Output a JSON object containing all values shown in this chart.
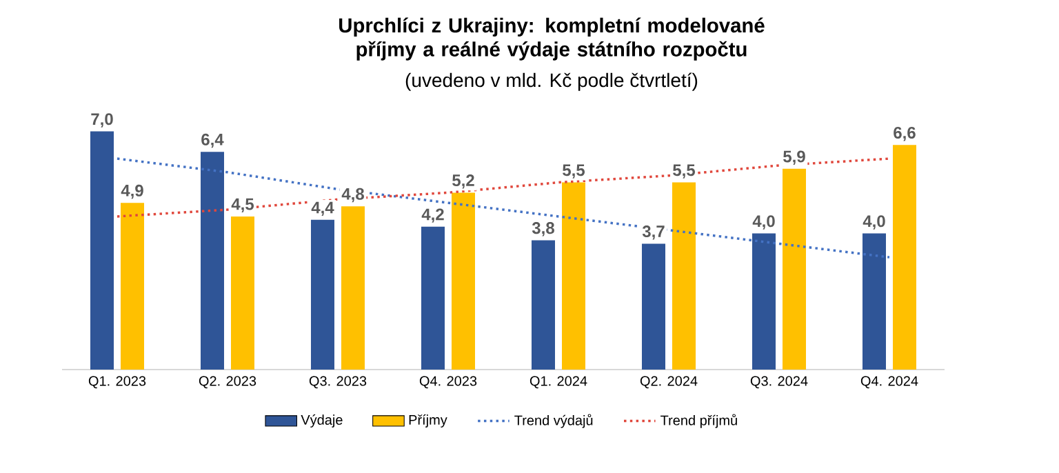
{
  "chart_data": {
    "type": "bar",
    "title": "Uprchlíci z Ukrajiny: kompletní modelované příjmy a reálné výdaje státního rozpočtu",
    "subtitle": "(uvedeno v mld. Kč podle čtvrtletí)",
    "categories": [
      "Q1. 2023",
      "Q2. 2023",
      "Q3. 2023",
      "Q4. 2023",
      "Q1. 2024",
      "Q2. 2024",
      "Q3. 2024",
      "Q4. 2024"
    ],
    "series": [
      {
        "name": "Výdaje",
        "color": "#2f5597",
        "values": [
          7.0,
          6.4,
          4.4,
          4.2,
          3.8,
          3.7,
          4.0,
          4.0
        ],
        "value_labels": [
          "7,0",
          "6,4",
          "4,4",
          "4,2",
          "3,8",
          "3,7",
          "4,0",
          "4,0"
        ]
      },
      {
        "name": "Příjmy",
        "color": "#ffc000",
        "values": [
          4.9,
          4.5,
          4.8,
          5.2,
          5.5,
          5.5,
          5.9,
          6.6
        ],
        "value_labels": [
          "4,9",
          "4,5",
          "4,8",
          "5,2",
          "5,5",
          "5,5",
          "5,9",
          "6,6"
        ]
      },
      {
        "name": "Trend výdajů",
        "type": "line",
        "line_style": "dotted",
        "color": "#4472c4",
        "values": [
          6.2,
          5.8,
          5.3,
          4.9,
          4.5,
          4.1,
          3.7,
          3.3
        ]
      },
      {
        "name": "Trend příjmů",
        "type": "line",
        "line_style": "dotted",
        "color": "#e0473c",
        "values": [
          4.5,
          4.7,
          5.0,
          5.2,
          5.5,
          5.7,
          6.0,
          6.2
        ]
      }
    ],
    "legend": "bottom"
  }
}
